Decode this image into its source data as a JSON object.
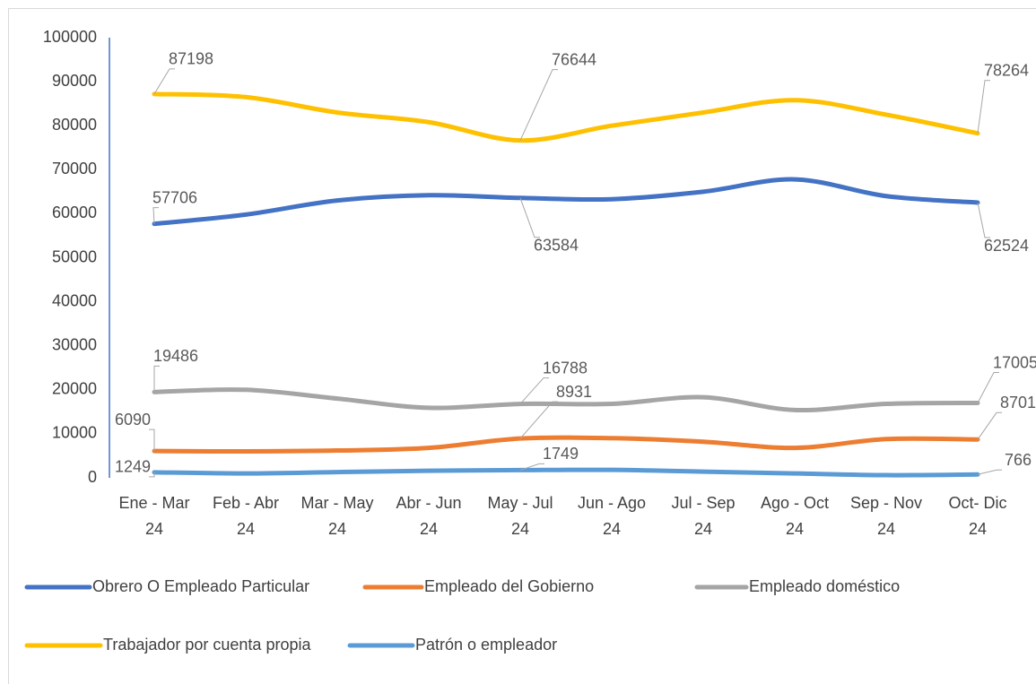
{
  "chart_data": {
    "type": "line",
    "categories": [
      "Ene - Mar 24",
      "Feb - Abr 24",
      "Mar - May 24",
      "Abr - Jun 24",
      "May - Jul 24",
      "Jun - Ago 24",
      "Jul - Sep 24",
      "Ago - Oct 24",
      "Sep - Nov 24",
      "Oct- Dic 24"
    ],
    "series": [
      {
        "name": "Obrero O Empleado Particular",
        "color": "#4472c4",
        "values": [
          57706,
          59800,
          63000,
          64200,
          63584,
          63300,
          65000,
          67800,
          64000,
          62524
        ]
      },
      {
        "name": "Empleado del Gobierno",
        "color": "#ed7d31",
        "values": [
          6090,
          6000,
          6200,
          6800,
          8931,
          9000,
          8200,
          6800,
          8800,
          8701
        ]
      },
      {
        "name": "Empleado doméstico",
        "color": "#a5a5a5",
        "values": [
          19486,
          20000,
          18000,
          15900,
          16788,
          16800,
          18300,
          15400,
          16800,
          17005
        ]
      },
      {
        "name": "Trabajador por cuenta propia",
        "color": "#ffc000",
        "values": [
          87198,
          86500,
          83000,
          80800,
          76644,
          80000,
          83000,
          85800,
          82500,
          78264
        ]
      },
      {
        "name": "Patrón o empleador",
        "color": "#5b9bd5",
        "values": [
          1249,
          1000,
          1300,
          1600,
          1749,
          1800,
          1400,
          1000,
          600,
          766
        ]
      }
    ],
    "data_label_indices": [
      0,
      4,
      9
    ],
    "ylim": [
      0,
      100000
    ],
    "yticks": [
      0,
      10000,
      20000,
      30000,
      40000,
      50000,
      60000,
      70000,
      80000,
      90000,
      100000
    ],
    "grid": false,
    "legend": "bottom"
  }
}
